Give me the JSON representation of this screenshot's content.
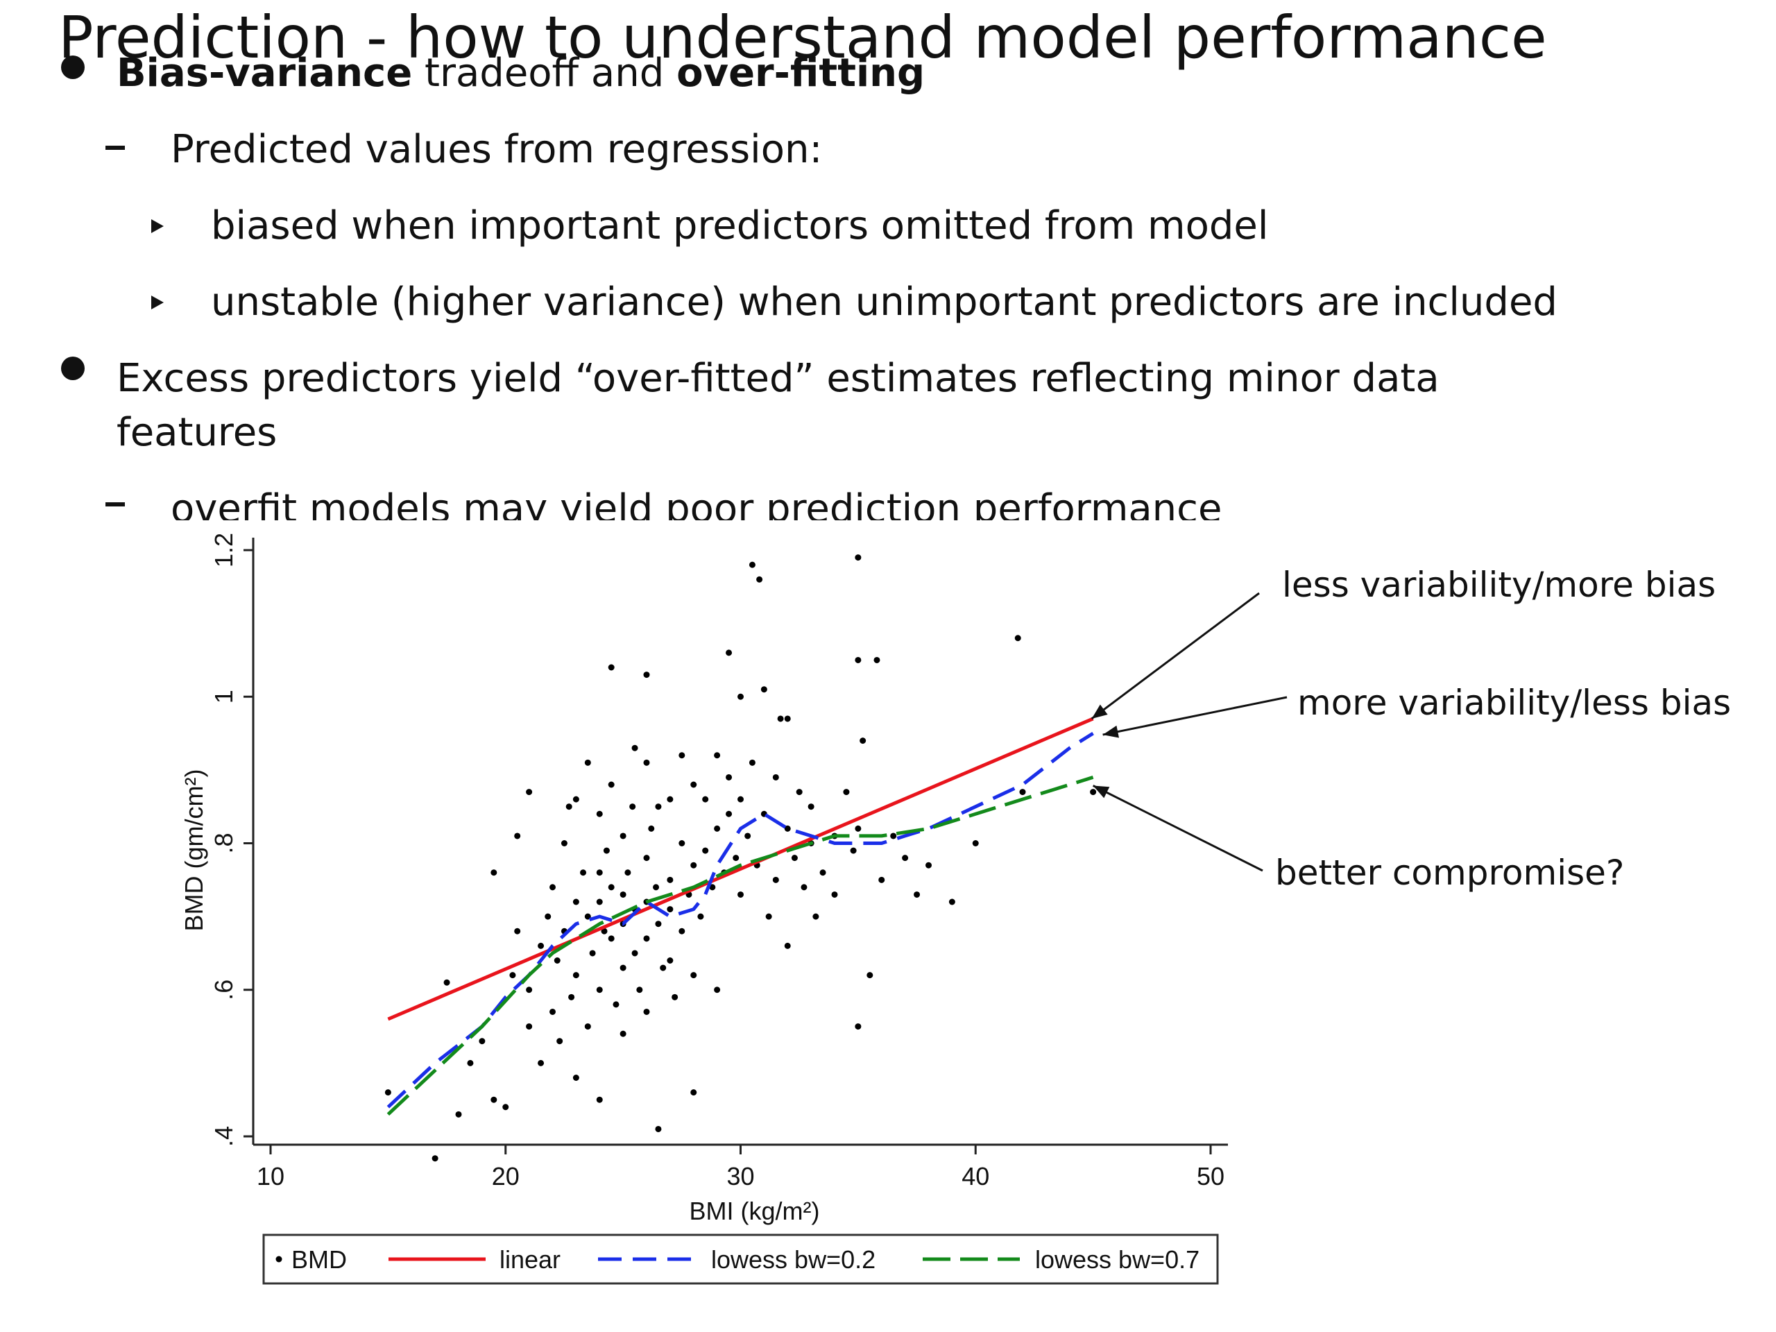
{
  "slide": {
    "title": "Prediction - how to understand model performance",
    "bullet1": {
      "bold1": "Bias-variance",
      "mid": " tradeoff and ",
      "bold2": "over-fitting"
    },
    "sub1": "Predicted values from regression:",
    "sub1_items": [
      "biased when important predictors omitted from model",
      "unstable (higher variance) when unimportant predictors are included"
    ],
    "bullet2_line1": "Excess predictors yield “over-fitted” estimates reflecting minor data",
    "bullet2_line2": "features",
    "sub2": "overfit models may yield poor prediction performance"
  },
  "chart_data": {
    "type": "scatter",
    "xlabel": "BMI (kg/m²)",
    "ylabel": "BMD (gm/cm²)",
    "xlim": [
      10,
      50
    ],
    "ylim": [
      0.4,
      1.2
    ],
    "x_ticks": [
      10,
      20,
      30,
      40,
      50
    ],
    "y_ticks": [
      0.4,
      0.6,
      0.8,
      1.0,
      1.2
    ],
    "x_tick_labels": [
      "10",
      "20",
      "30",
      "40",
      "50"
    ],
    "y_tick_labels": [
      ".4",
      ".6",
      ".8",
      "1",
      "1.2"
    ],
    "grid": false,
    "legend_position": "bottom",
    "legend": [
      {
        "label": "BMD",
        "style": "dot",
        "color": "#000000"
      },
      {
        "label": "linear",
        "style": "solid",
        "color": "#e8141c"
      },
      {
        "label": "lowess bw=0.2",
        "style": "dashed",
        "color": "#1a2ee8"
      },
      {
        "label": "lowess bw=0.7",
        "style": "dashed",
        "color": "#138a1b"
      }
    ],
    "series": [
      {
        "name": "BMD",
        "kind": "points",
        "color": "#000000",
        "points": [
          [
            15,
            0.46
          ],
          [
            17,
            0.37
          ],
          [
            17.5,
            0.61
          ],
          [
            18,
            0.43
          ],
          [
            18.5,
            0.5
          ],
          [
            19,
            0.53
          ],
          [
            19.5,
            0.45
          ],
          [
            19.5,
            0.76
          ],
          [
            20,
            0.44
          ],
          [
            20.3,
            0.62
          ],
          [
            20.5,
            0.68
          ],
          [
            20.5,
            0.81
          ],
          [
            21,
            0.87
          ],
          [
            21,
            0.6
          ],
          [
            21,
            0.55
          ],
          [
            21.5,
            0.5
          ],
          [
            21.5,
            0.66
          ],
          [
            21.8,
            0.7
          ],
          [
            22,
            0.57
          ],
          [
            22,
            0.74
          ],
          [
            22.2,
            0.64
          ],
          [
            22.3,
            0.53
          ],
          [
            22.5,
            0.8
          ],
          [
            22.5,
            0.68
          ],
          [
            22.7,
            0.85
          ],
          [
            22.8,
            0.59
          ],
          [
            23,
            0.86
          ],
          [
            23,
            0.72
          ],
          [
            23,
            0.62
          ],
          [
            23,
            0.48
          ],
          [
            23.3,
            0.76
          ],
          [
            23.5,
            0.91
          ],
          [
            23.5,
            0.7
          ],
          [
            23.5,
            0.55
          ],
          [
            23.7,
            0.65
          ],
          [
            24,
            0.84
          ],
          [
            24,
            0.76
          ],
          [
            24,
            0.72
          ],
          [
            24,
            0.6
          ],
          [
            24,
            0.45
          ],
          [
            24.2,
            0.68
          ],
          [
            24.3,
            0.79
          ],
          [
            24.5,
            1.04
          ],
          [
            24.5,
            0.88
          ],
          [
            24.5,
            0.74
          ],
          [
            24.5,
            0.67
          ],
          [
            24.7,
            0.58
          ],
          [
            25,
            0.81
          ],
          [
            25,
            0.73
          ],
          [
            25,
            0.69
          ],
          [
            25,
            0.63
          ],
          [
            25,
            0.54
          ],
          [
            25.2,
            0.76
          ],
          [
            25.4,
            0.85
          ],
          [
            25.5,
            0.93
          ],
          [
            25.5,
            0.71
          ],
          [
            25.5,
            0.65
          ],
          [
            25.7,
            0.6
          ],
          [
            26,
            1.03
          ],
          [
            26,
            0.91
          ],
          [
            26,
            0.78
          ],
          [
            26,
            0.72
          ],
          [
            26,
            0.67
          ],
          [
            26,
            0.57
          ],
          [
            26.2,
            0.82
          ],
          [
            26.4,
            0.74
          ],
          [
            26.5,
            0.85
          ],
          [
            26.5,
            0.69
          ],
          [
            26.5,
            0.41
          ],
          [
            26.7,
            0.63
          ],
          [
            27,
            0.86
          ],
          [
            27,
            0.75
          ],
          [
            27,
            0.71
          ],
          [
            27,
            0.64
          ],
          [
            27.2,
            0.59
          ],
          [
            27.5,
            0.92
          ],
          [
            27.5,
            0.8
          ],
          [
            27.5,
            0.68
          ],
          [
            27.8,
            0.73
          ],
          [
            28,
            0.88
          ],
          [
            28,
            0.77
          ],
          [
            28,
            0.62
          ],
          [
            28,
            0.46
          ],
          [
            28.3,
            0.7
          ],
          [
            28.5,
            0.86
          ],
          [
            28.5,
            0.79
          ],
          [
            28.8,
            0.74
          ],
          [
            29,
            0.92
          ],
          [
            29,
            0.82
          ],
          [
            29,
            0.6
          ],
          [
            29.3,
            0.76
          ],
          [
            29.5,
            1.06
          ],
          [
            29.5,
            0.89
          ],
          [
            29.5,
            0.84
          ],
          [
            29.8,
            0.78
          ],
          [
            30,
            1.0
          ],
          [
            30,
            0.86
          ],
          [
            30,
            0.73
          ],
          [
            30.3,
            0.81
          ],
          [
            30.5,
            1.18
          ],
          [
            30.5,
            0.91
          ],
          [
            30.7,
            0.77
          ],
          [
            30.8,
            1.16
          ],
          [
            31,
            1.01
          ],
          [
            31,
            0.84
          ],
          [
            31.2,
            0.7
          ],
          [
            31.5,
            0.89
          ],
          [
            31.5,
            0.75
          ],
          [
            31.7,
            0.97
          ],
          [
            32,
            0.97
          ],
          [
            32,
            0.82
          ],
          [
            32,
            0.66
          ],
          [
            32.3,
            0.78
          ],
          [
            32.5,
            0.87
          ],
          [
            32.7,
            0.74
          ],
          [
            33,
            0.85
          ],
          [
            33,
            0.8
          ],
          [
            33.2,
            0.7
          ],
          [
            33.5,
            0.76
          ],
          [
            34,
            0.81
          ],
          [
            34,
            0.73
          ],
          [
            34.5,
            0.87
          ],
          [
            34.8,
            0.79
          ],
          [
            35,
            1.05
          ],
          [
            35,
            1.19
          ],
          [
            35,
            0.82
          ],
          [
            35,
            0.55
          ],
          [
            35.2,
            0.94
          ],
          [
            35.5,
            0.62
          ],
          [
            35.8,
            1.05
          ],
          [
            36,
            0.75
          ],
          [
            36.5,
            0.81
          ],
          [
            37,
            0.78
          ],
          [
            37.5,
            0.73
          ],
          [
            38,
            0.77
          ],
          [
            39,
            0.72
          ],
          [
            40,
            0.8
          ],
          [
            41.8,
            1.08
          ],
          [
            42,
            0.87
          ],
          [
            45,
            0.87
          ]
        ]
      },
      {
        "name": "linear",
        "kind": "line",
        "color": "#e8141c",
        "points": [
          [
            15,
            0.56
          ],
          [
            45,
            0.97
          ]
        ]
      },
      {
        "name": "lowess bw=0.2",
        "kind": "line",
        "color": "#1a2ee8",
        "points": [
          [
            15,
            0.44
          ],
          [
            17,
            0.5
          ],
          [
            19,
            0.55
          ],
          [
            20,
            0.59
          ],
          [
            21,
            0.62
          ],
          [
            22,
            0.66
          ],
          [
            23,
            0.69
          ],
          [
            24,
            0.7
          ],
          [
            25,
            0.69
          ],
          [
            26,
            0.72
          ],
          [
            27,
            0.7
          ],
          [
            28,
            0.71
          ],
          [
            28.5,
            0.73
          ],
          [
            29,
            0.77
          ],
          [
            30,
            0.82
          ],
          [
            31,
            0.84
          ],
          [
            32,
            0.82
          ],
          [
            33,
            0.81
          ],
          [
            34,
            0.8
          ],
          [
            35,
            0.8
          ],
          [
            36,
            0.8
          ],
          [
            37,
            0.81
          ],
          [
            38,
            0.82
          ],
          [
            40,
            0.85
          ],
          [
            42,
            0.88
          ],
          [
            44,
            0.93
          ],
          [
            45,
            0.95
          ]
        ]
      },
      {
        "name": "lowess bw=0.7",
        "kind": "line",
        "color": "#138a1b",
        "points": [
          [
            15,
            0.43
          ],
          [
            17,
            0.49
          ],
          [
            19,
            0.55
          ],
          [
            21,
            0.62
          ],
          [
            22,
            0.65
          ],
          [
            24,
            0.69
          ],
          [
            26,
            0.72
          ],
          [
            28,
            0.74
          ],
          [
            30,
            0.77
          ],
          [
            32,
            0.79
          ],
          [
            34,
            0.81
          ],
          [
            36,
            0.81
          ],
          [
            38,
            0.82
          ],
          [
            40,
            0.84
          ],
          [
            42,
            0.86
          ],
          [
            44,
            0.88
          ],
          [
            45,
            0.89
          ]
        ]
      }
    ],
    "annotations": [
      {
        "text": "less variability/more bias",
        "target": "linear"
      },
      {
        "text": "more variability/less bias",
        "target": "lowess bw=0.2"
      },
      {
        "text": "better compromise?",
        "target": "lowess bw=0.7"
      }
    ]
  }
}
